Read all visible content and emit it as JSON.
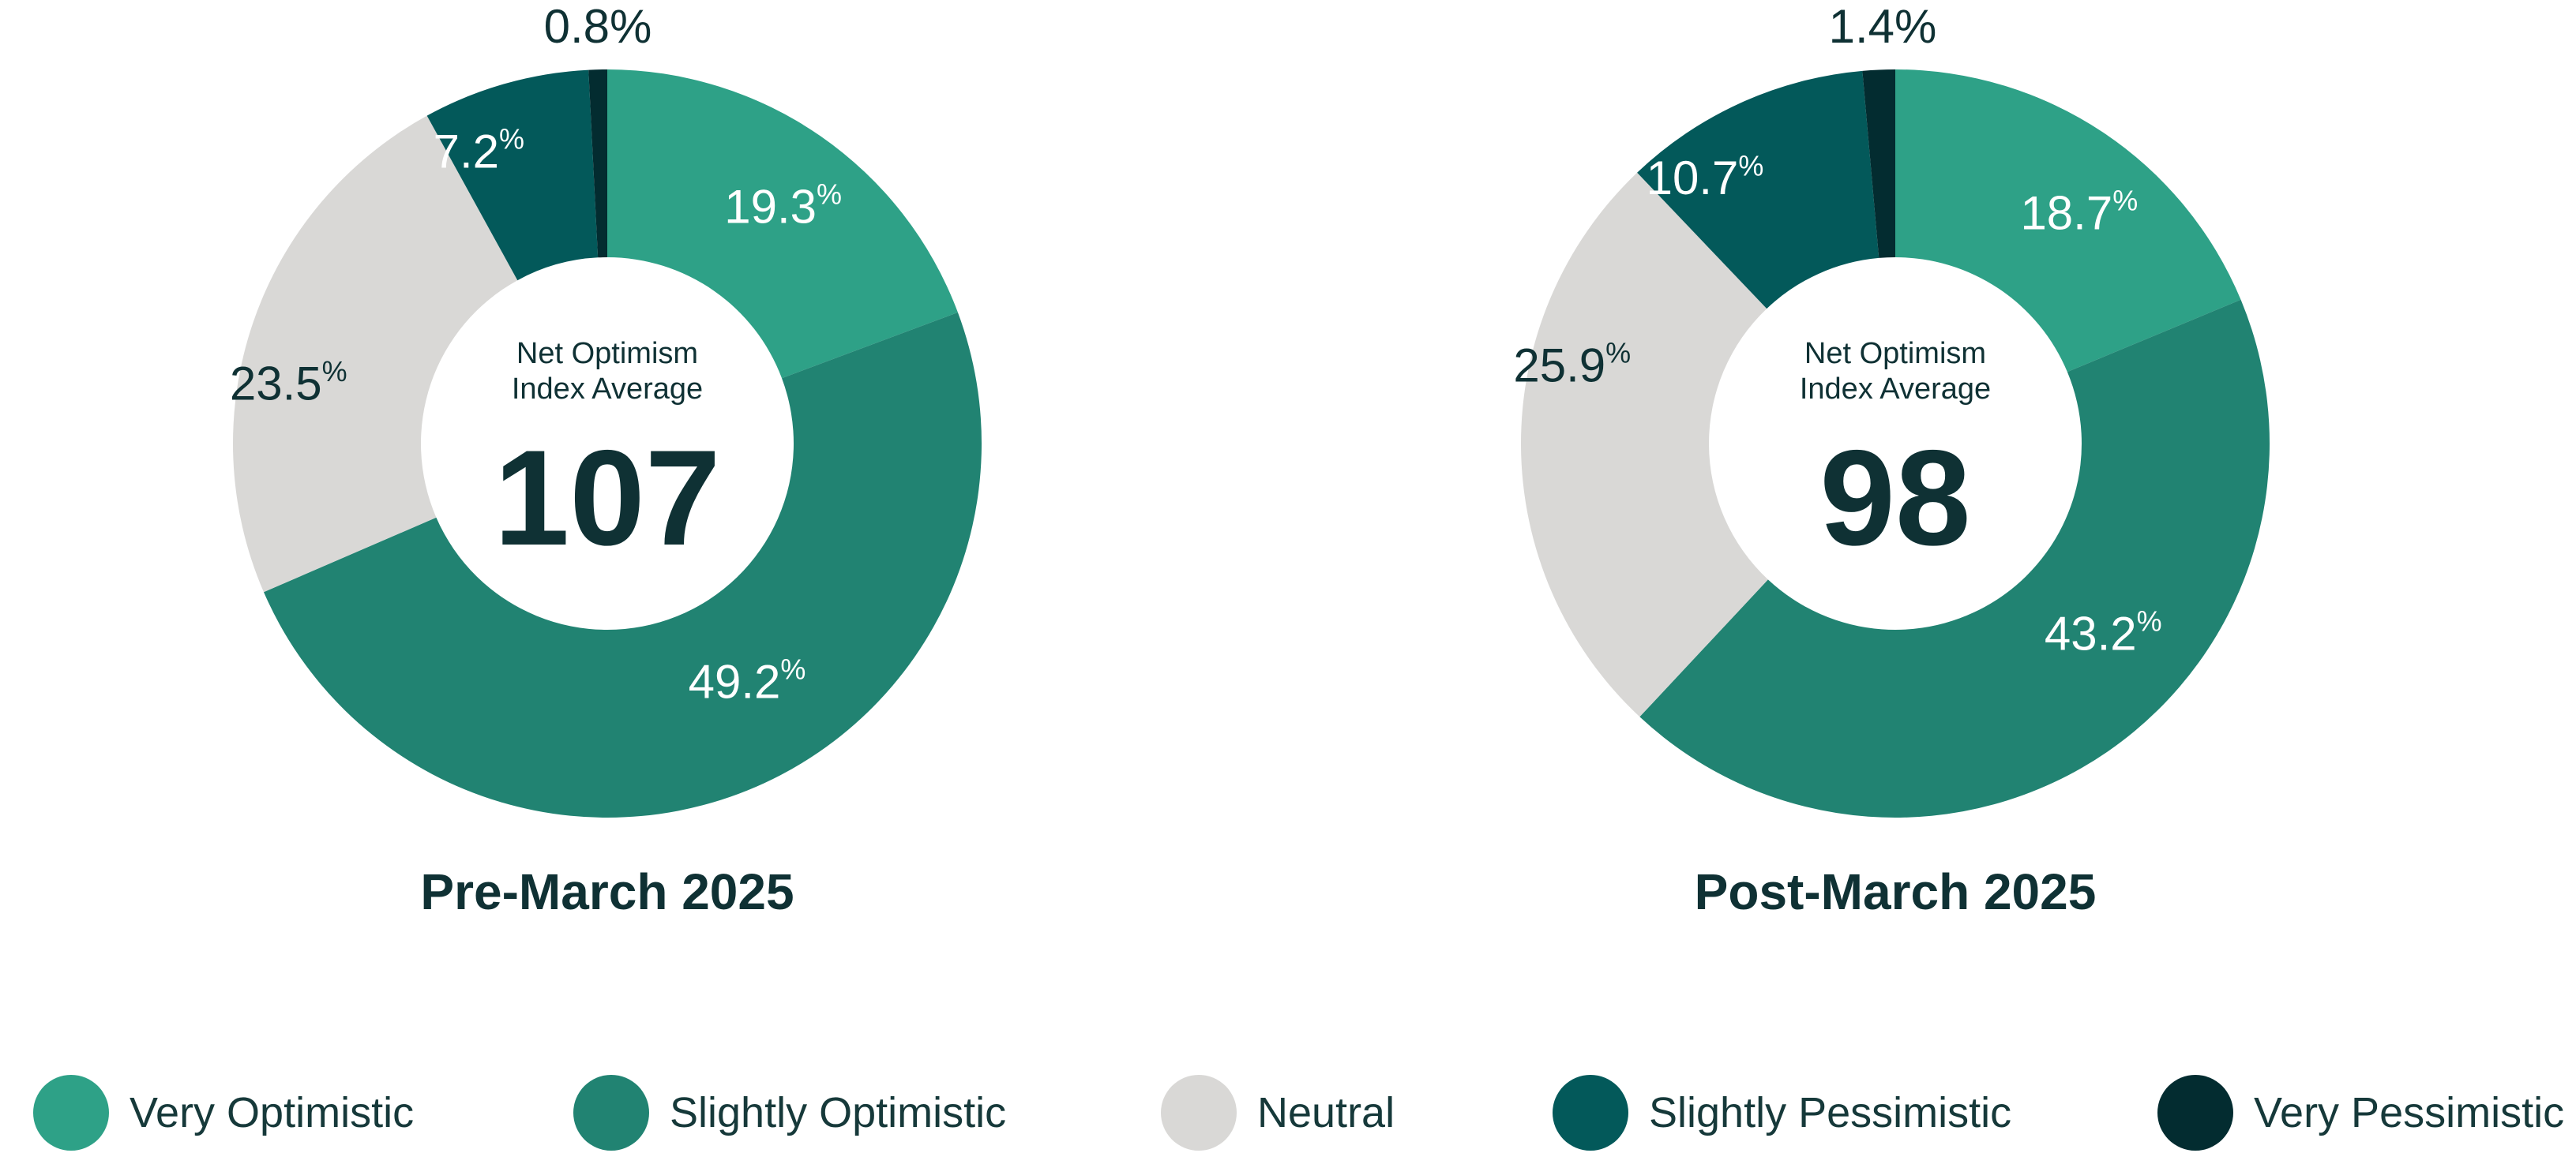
{
  "categories": [
    "Very Optimistic",
    "Slightly Optimistic",
    "Neutral",
    "Slightly Pessimistic",
    "Very Pessimistic"
  ],
  "colors": {
    "very_optimistic": "#2ea187",
    "slightly_optimistic": "#218372",
    "neutral": "#d9d8d6",
    "slightly_pessimistic": "#03595a",
    "very_pessimistic": "#032c30",
    "text_dark": "#0f3134",
    "label_light": "#ffffff"
  },
  "center_label": {
    "line1": "Net Optimism",
    "line2": "Index Average"
  },
  "percent_symbol": "%",
  "chart_data": [
    {
      "type": "pie",
      "title": "Pre-March 2025",
      "index_average": "107",
      "categories": [
        "Very Optimistic",
        "Slightly Optimistic",
        "Neutral",
        "Slightly Pessimistic",
        "Very Pessimistic"
      ],
      "values": [
        19.3,
        49.2,
        23.5,
        7.2,
        0.8
      ],
      "labels": [
        "19.3",
        "49.2",
        "23.5",
        "7.2",
        "0.8"
      ]
    },
    {
      "type": "pie",
      "title": "Post-March 2025",
      "index_average": "98",
      "categories": [
        "Very Optimistic",
        "Slightly Optimistic",
        "Neutral",
        "Slightly Pessimistic",
        "Very Pessimistic"
      ],
      "values": [
        18.7,
        43.2,
        25.9,
        10.7,
        1.4
      ],
      "labels": [
        "18.7",
        "43.2",
        "25.9",
        "10.7",
        "1.4"
      ]
    }
  ],
  "legend": [
    {
      "label": "Very Optimistic",
      "color": "#2ea187"
    },
    {
      "label": "Slightly Optimistic",
      "color": "#218372"
    },
    {
      "label": "Neutral",
      "color": "#d9d8d6"
    },
    {
      "label": "Slightly Pessimistic",
      "color": "#03595a"
    },
    {
      "label": "Very Pessimistic",
      "color": "#032c30"
    }
  ]
}
